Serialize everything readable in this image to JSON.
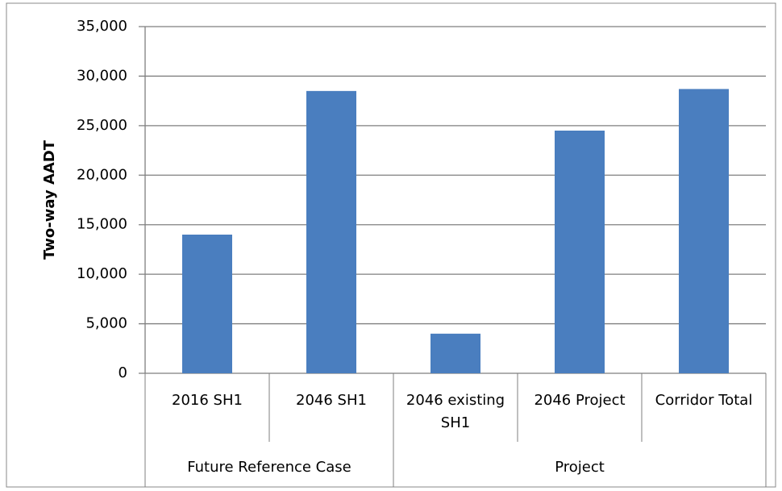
{
  "chart_data": {
    "type": "bar",
    "y_label": "Two-way AADT",
    "categories": [
      "2016 SH1",
      "2046 SH1",
      "2046 existing SH1",
      "2046 Project",
      "Corridor Total"
    ],
    "values": [
      14000,
      28500,
      4000,
      24500,
      28700
    ],
    "groups": [
      {
        "label": "Future Reference Case",
        "count": 2
      },
      {
        "label": "Project",
        "count": 3
      }
    ],
    "color": "#4a7ebf",
    "ylim": [
      0,
      35000
    ],
    "yticks": [
      0,
      {
        "value": 5000,
        "label": "5,000"
      },
      {
        "value": 10000,
        "label": "10,000"
      },
      {
        "value": 15000,
        "label": "15,000"
      },
      {
        "value": 20000,
        "label": "20,000"
      },
      {
        "value": 25000,
        "label": "25,000"
      },
      {
        "value": 30000,
        "label": "30,000"
      },
      {
        "value": 35000,
        "label": "35,000"
      }
    ],
    "grid": true
  }
}
